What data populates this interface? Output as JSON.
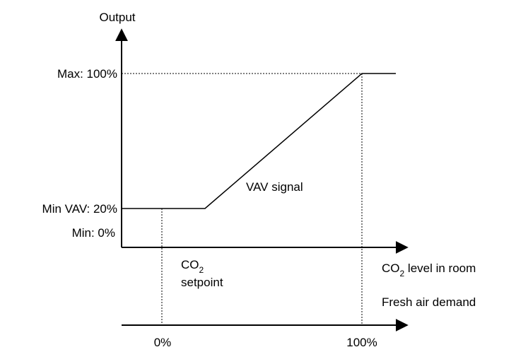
{
  "diagram": {
    "y_axis_label": "Output",
    "y_levels": {
      "max": "Max: 100%",
      "min_vav": "Min VAV: 20%",
      "min": "Min: 0%"
    },
    "curve_label": "VAV signal",
    "setpoint": {
      "main": "CO",
      "sub": "2",
      "line2": "setpoint"
    },
    "x_axis_label": {
      "main": "CO",
      "sub": "2",
      "rest": " level in room"
    },
    "second_axis_label": "Fresh air demand",
    "second_axis_ticks": [
      "0%",
      "100%"
    ]
  }
}
